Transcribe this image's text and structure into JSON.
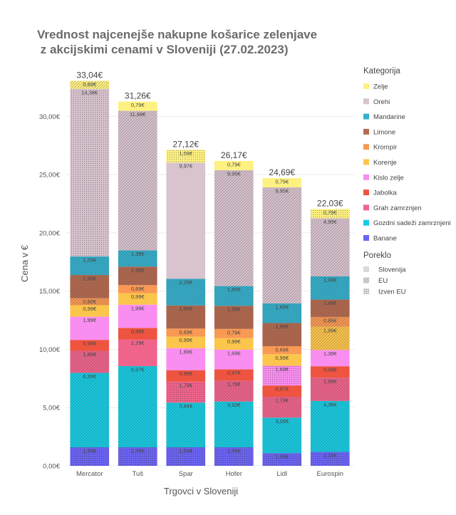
{
  "chart_data": {
    "type": "bar",
    "stacked": true,
    "title_lines": [
      "Vrednost najcenejše nakupne košarice zelenjave",
      " z akcijskimi cenami v Sloveniji (27.02.2023)"
    ],
    "xlabel": "Trgovci v Sloveniji",
    "ylabel": "Cena v €",
    "ylim": [
      0,
      33.5
    ],
    "yticks": [
      0,
      5,
      10,
      15,
      20,
      25,
      30
    ],
    "ytick_labels": [
      "0,00€",
      "5,00€",
      "10,00€",
      "15,00€",
      "20,00€",
      "25,00€",
      "30,00€"
    ],
    "grid": true,
    "categories": [
      "Mercator",
      "Tuš",
      "Spar",
      "Hofer",
      "Lidl",
      "Eurospin"
    ],
    "totals": [
      "33,04€",
      "31,26€",
      "27,12€",
      "26,17€",
      "24,69€",
      "22,03€"
    ],
    "legend_title": "Kategorija",
    "legend_position": "right",
    "series": [
      {
        "name": "Banane",
        "color": "#6b63f0",
        "values": [
          1.59,
          1.59,
          1.59,
          1.59,
          1.09,
          1.19
        ],
        "labels": [
          "1,59€",
          "1,59€",
          "1,59€",
          "1,59€",
          "1,09€",
          "1,19€"
        ],
        "origin": [
          "izven",
          "izven",
          "izven",
          "izven",
          "izven",
          "izven"
        ]
      },
      {
        "name": "Gozdni sadeži zamrznjeni",
        "color": "#17cce3",
        "values": [
          6.39,
          6.97,
          3.84,
          3.93,
          3.05,
          4.38
        ],
        "labels": [
          "6,39€",
          "6,97€",
          "3,84€",
          "3,93€",
          "3,05€",
          "4,38€"
        ],
        "origin": [
          "eu",
          "eu",
          "eu",
          "eu",
          "eu",
          "eu"
        ]
      },
      {
        "name": "Grah zamrznjen",
        "color": "#f0648c",
        "values": [
          1.89,
          2.29,
          1.79,
          1.79,
          1.79,
          1.99
        ],
        "labels": [
          "1,89€",
          "2,29€",
          "1,79€",
          "1,79€",
          "1,79€",
          "1,99€"
        ],
        "origin": [
          "eu",
          "slovenija",
          "izven",
          "eu",
          "eu",
          "eu"
        ]
      },
      {
        "name": "Jabolka",
        "color": "#ee5440",
        "values": [
          0.94,
          0.99,
          0.99,
          0.97,
          0.97,
          0.99
        ],
        "labels": [
          "0,94€",
          "0,99€",
          "0,99€",
          "0,97€",
          "0,97€",
          "0,99€"
        ],
        "origin": [
          "slovenija",
          "slovenija",
          "slovenija",
          "slovenija",
          "slovenija",
          "slovenija"
        ]
      },
      {
        "name": "Kislo zelje",
        "color": "#f98ef0",
        "values": [
          1.99,
          1.99,
          1.89,
          1.69,
          1.69,
          1.39
        ],
        "labels": [
          "1,99€",
          "1,99€",
          "1,89€",
          "1,69€",
          "1,69€",
          "1,39€"
        ],
        "origin": [
          "slovenija",
          "slovenija",
          "slovenija",
          "slovenija",
          "izven",
          "slovenija"
        ]
      },
      {
        "name": "Korenje",
        "color": "#fcc54b",
        "values": [
          0.99,
          0.99,
          0.99,
          0.99,
          0.99,
          1.99
        ],
        "labels": [
          "0,99€",
          "0,99€",
          "0,99€",
          "0,99€",
          "0,99€",
          "1,99€"
        ],
        "origin": [
          "slovenija",
          "slovenija",
          "slovenija",
          "slovenija",
          "slovenija",
          "eu"
        ]
      },
      {
        "name": "Krompir",
        "color": "#f99954",
        "values": [
          0.6,
          0.69,
          0.69,
          0.79,
          0.69,
          0.85
        ],
        "labels": [
          "0,60€",
          "0,69€",
          "0,69€",
          "0,79€",
          "0,69€",
          "0,85€"
        ],
        "origin": [
          "eu",
          "slovenija",
          "slovenija",
          "slovenija",
          "slovenija",
          "eu"
        ]
      },
      {
        "name": "Limone",
        "color": "#b56a50",
        "values": [
          1.99,
          1.59,
          1.99,
          1.99,
          1.99,
          1.49
        ],
        "labels": [
          "1,99€",
          "1,59€",
          "1,99€",
          "1,99€",
          "1,99€",
          "1,49€"
        ],
        "origin": [
          "eu",
          "eu",
          "eu",
          "eu",
          "eu",
          "eu"
        ]
      },
      {
        "name": "Mandarine",
        "color": "#35b0cc",
        "values": [
          1.59,
          1.39,
          2.29,
          1.69,
          1.69,
          1.99
        ],
        "labels": [
          "1,59€",
          "1,39€",
          "2,29€",
          "1,69€",
          "1,69€",
          "1,99€"
        ],
        "origin": [
          "eu",
          "eu",
          "eu",
          "eu",
          "eu",
          "eu"
        ]
      },
      {
        "name": "Orehi",
        "color": "#d8c3cf",
        "values": [
          14.38,
          11.98,
          9.97,
          9.95,
          9.95,
          4.99
        ],
        "labels": [
          "14,38€",
          "11,98€",
          "9,97€",
          "9,95€",
          "9,95€",
          "4,99€"
        ],
        "origin": [
          "izven",
          "eu",
          "slovenija",
          "eu",
          "eu",
          "eu"
        ]
      },
      {
        "name": "Zelje",
        "color": "#fff181",
        "values": [
          0.69,
          0.79,
          1.09,
          0.79,
          0.79,
          0.79
        ],
        "labels": [
          "0,69€",
          "0,79€",
          "1,09€",
          "0,79€",
          "0,79€",
          "0,79€"
        ],
        "origin": [
          "eu",
          "slovenija",
          "izven",
          "slovenija",
          "slovenija",
          "izven"
        ]
      }
    ],
    "origin_legend": {
      "title": "Poreklo",
      "items": [
        {
          "key": "slovenija",
          "label": "Slovenija"
        },
        {
          "key": "eu",
          "label": "EU"
        },
        {
          "key": "izven",
          "label": "Izven EU"
        }
      ]
    }
  }
}
